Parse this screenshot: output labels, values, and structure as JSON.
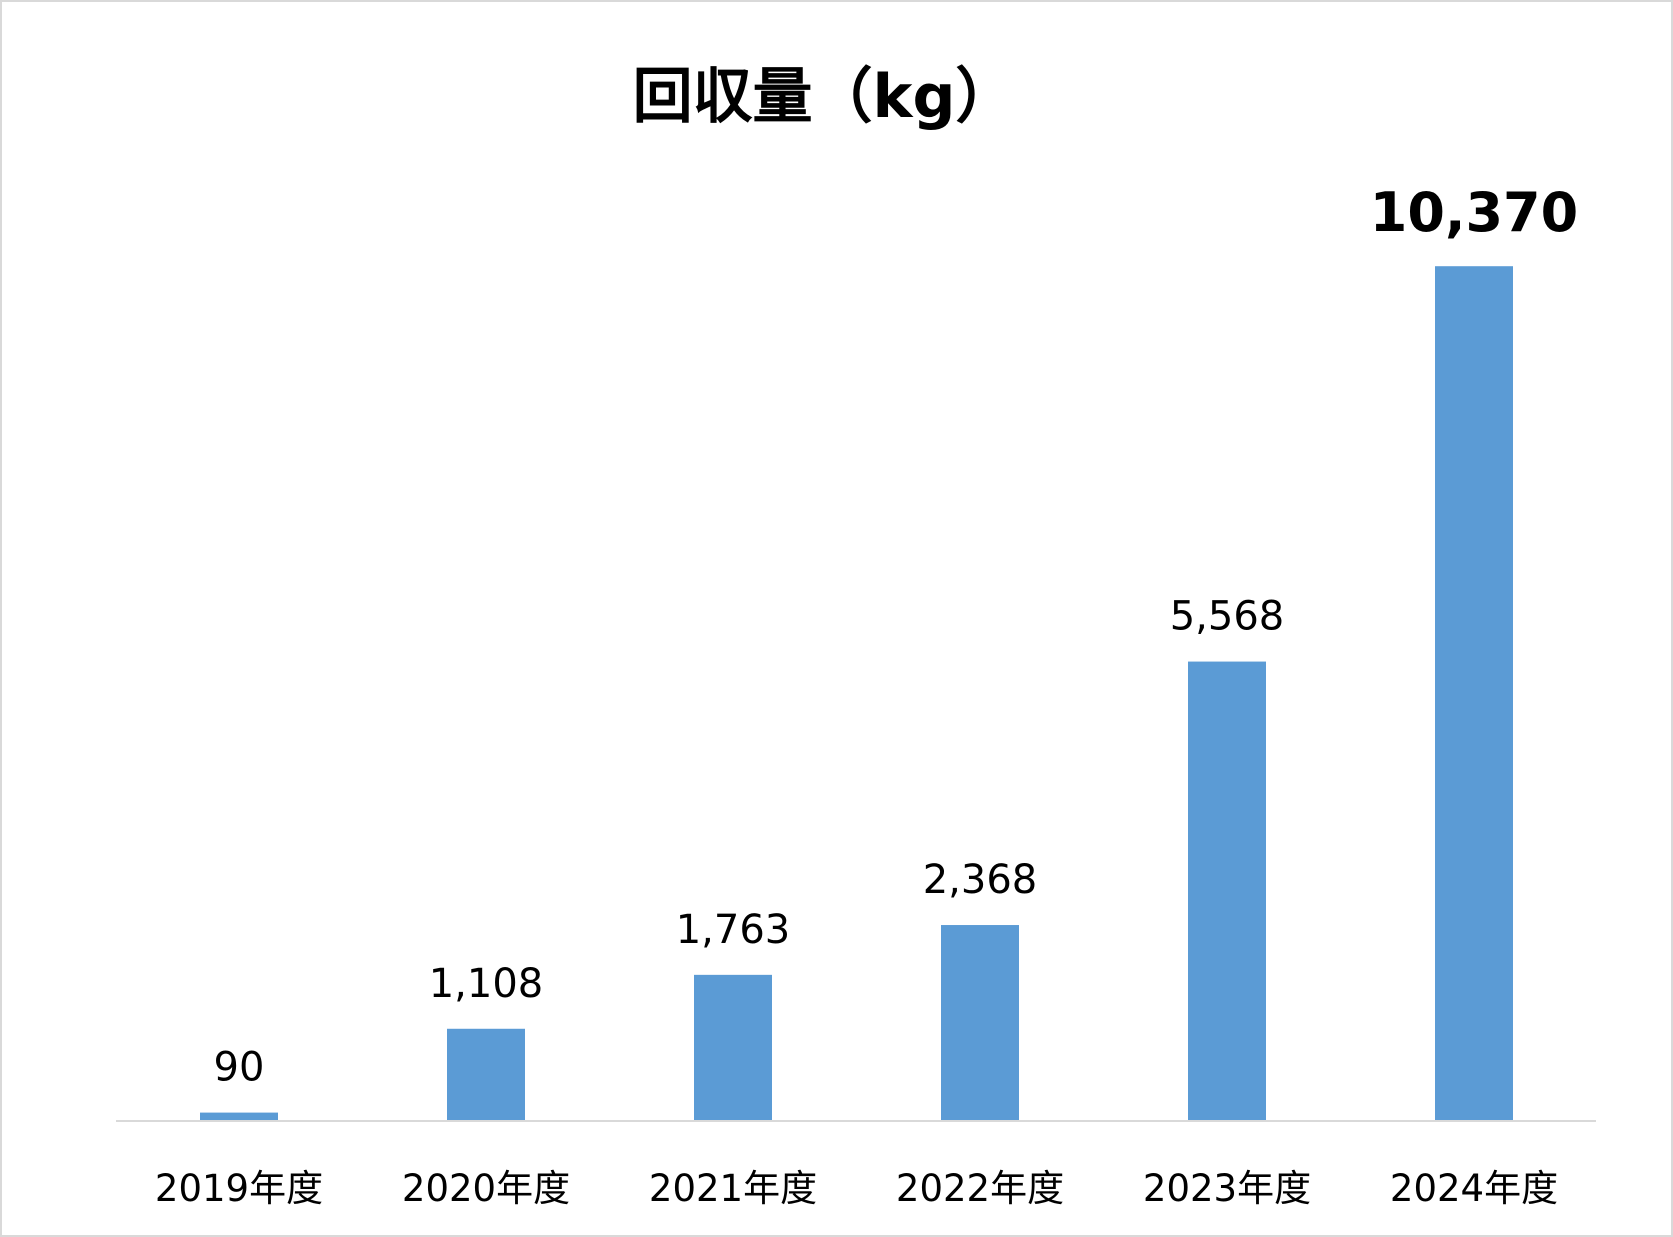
{
  "chart_data": {
    "type": "bar",
    "title": "回収量（kg）",
    "xlabel": "",
    "ylabel": "",
    "categories": [
      "2019年度",
      "2020年度",
      "2021年度",
      "2022年度",
      "2023年度",
      "2024年度"
    ],
    "values": [
      90,
      1108,
      1763,
      2368,
      5568,
      10370
    ],
    "data_labels": [
      "90",
      "1,108",
      "1,763",
      "2,368",
      "5,568",
      "10,370"
    ],
    "emphasized_label_index": 5,
    "ylim": [
      0,
      12000
    ],
    "grid": false,
    "legend": "none",
    "bar_color": "#5b9bd5",
    "axis_color": "#d9d9d9"
  }
}
